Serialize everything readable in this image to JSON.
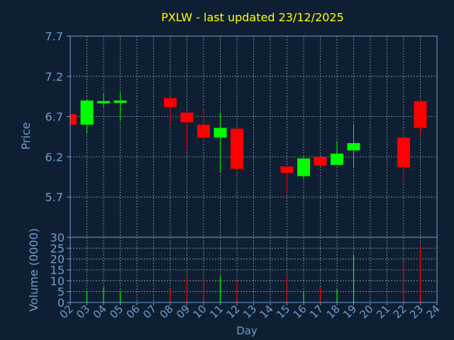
{
  "chart_data": [
    {
      "type": "candlestick",
      "title": "PXLW - last updated 23/12/2025",
      "ylabel": "Price",
      "ylim": [
        5.2,
        7.7
      ],
      "yticks": [
        "7.7",
        "7.2",
        "6.7",
        "6.2",
        "5.7"
      ],
      "grid": true,
      "colors": {
        "up": "#00ff00",
        "down": "#ff0000",
        "background": "#0f1f33",
        "axis": "#6f9ccc",
        "title": "#ffff00"
      },
      "candles": [
        {
          "day": "02",
          "open": 6.73,
          "high": 6.73,
          "low": 6.6,
          "close": 6.6
        },
        {
          "day": "03",
          "open": 6.6,
          "high": 6.91,
          "low": 6.5,
          "close": 6.9
        },
        {
          "day": "04",
          "open": 6.87,
          "high": 6.99,
          "low": 6.82,
          "close": 6.89
        },
        {
          "day": "05",
          "open": 6.87,
          "high": 7.0,
          "low": 6.65,
          "close": 6.9
        },
        {
          "day": "08",
          "open": 6.93,
          "high": 6.93,
          "low": 6.6,
          "close": 6.82
        },
        {
          "day": "09",
          "open": 6.75,
          "high": 6.75,
          "low": 6.3,
          "close": 6.63
        },
        {
          "day": "10",
          "open": 6.6,
          "high": 6.82,
          "low": 6.38,
          "close": 6.44
        },
        {
          "day": "11",
          "open": 6.44,
          "high": 6.75,
          "low": 6.01,
          "close": 6.56
        },
        {
          "day": "12",
          "open": 6.55,
          "high": 6.55,
          "low": 6.04,
          "close": 6.05
        },
        {
          "day": "15",
          "open": 6.08,
          "high": 6.08,
          "low": 5.75,
          "close": 6.0
        },
        {
          "day": "16",
          "open": 5.96,
          "high": 6.19,
          "low": 5.92,
          "close": 6.18
        },
        {
          "day": "17",
          "open": 6.2,
          "high": 6.2,
          "low": 6.08,
          "close": 6.09
        },
        {
          "day": "18",
          "open": 6.1,
          "high": 6.4,
          "low": 6.1,
          "close": 6.24
        },
        {
          "day": "19",
          "open": 6.28,
          "high": 6.6,
          "low": 6.08,
          "close": 6.37
        },
        {
          "day": "22",
          "open": 6.44,
          "high": 6.44,
          "low": 5.88,
          "close": 6.07
        },
        {
          "day": "23",
          "open": 6.89,
          "high": 6.92,
          "low": 6.47,
          "close": 6.56
        }
      ]
    },
    {
      "type": "bar",
      "xlabel": "Day",
      "ylabel": "Volume (0000)",
      "ylim": [
        0,
        30
      ],
      "yticks": [
        "30",
        "25",
        "20",
        "15",
        "10",
        "5",
        "0"
      ],
      "categories": [
        "02",
        "03",
        "04",
        "05",
        "06",
        "07",
        "08",
        "09",
        "10",
        "11",
        "12",
        "13",
        "14",
        "15",
        "16",
        "17",
        "18",
        "19",
        "20",
        "21",
        "22",
        "23",
        "24"
      ],
      "volumes": [
        {
          "day": "03",
          "value": 5,
          "dir": "up"
        },
        {
          "day": "04",
          "value": 7,
          "dir": "up"
        },
        {
          "day": "05",
          "value": 5,
          "dir": "up"
        },
        {
          "day": "08",
          "value": 6,
          "dir": "down"
        },
        {
          "day": "09",
          "value": 12,
          "dir": "down"
        },
        {
          "day": "10",
          "value": 12,
          "dir": "down"
        },
        {
          "day": "11",
          "value": 12,
          "dir": "up"
        },
        {
          "day": "12",
          "value": 10,
          "dir": "down"
        },
        {
          "day": "15",
          "value": 12,
          "dir": "down"
        },
        {
          "day": "16",
          "value": 5,
          "dir": "up"
        },
        {
          "day": "17",
          "value": 7,
          "dir": "down"
        },
        {
          "day": "18",
          "value": 6,
          "dir": "up"
        },
        {
          "day": "19",
          "value": 22,
          "dir": "up"
        },
        {
          "day": "22",
          "value": 19,
          "dir": "down"
        },
        {
          "day": "23",
          "value": 26,
          "dir": "down"
        }
      ]
    }
  ]
}
